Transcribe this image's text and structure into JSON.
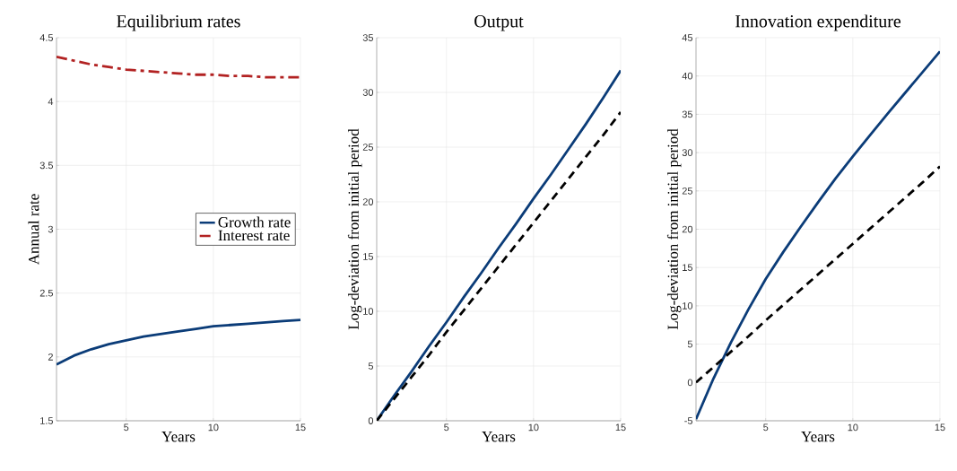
{
  "chart_data": [
    {
      "type": "line",
      "title": "Equilibrium rates",
      "xlabel": "Years",
      "ylabel": "Annual rate",
      "x": [
        1,
        2,
        3,
        4,
        5,
        6,
        7,
        8,
        9,
        10,
        11,
        12,
        13,
        14,
        15
      ],
      "xlim": [
        1,
        15
      ],
      "xticks": [
        5,
        10,
        15
      ],
      "ylim": [
        1.5,
        4.5
      ],
      "yticks": [
        1.5,
        2,
        2.5,
        3,
        3.5,
        4,
        4.5
      ],
      "grid": true,
      "legend": "right",
      "series": [
        {
          "name": "Growth rate",
          "color": "#0b3c78",
          "line_style": "solid",
          "values": [
            1.94,
            2.01,
            2.06,
            2.1,
            2.13,
            2.16,
            2.18,
            2.2,
            2.22,
            2.24,
            2.25,
            2.26,
            2.27,
            2.28,
            2.29
          ]
        },
        {
          "name": "Interest rate",
          "color": "#b22222",
          "line_style": "dashdot",
          "values": [
            4.35,
            4.32,
            4.29,
            4.27,
            4.25,
            4.24,
            4.23,
            4.22,
            4.21,
            4.21,
            4.2,
            4.2,
            4.19,
            4.19,
            4.19
          ]
        }
      ]
    },
    {
      "type": "line",
      "title": "Output",
      "xlabel": "Years",
      "ylabel": "Log-deviation from initial period",
      "x": [
        1,
        2,
        3,
        4,
        5,
        6,
        7,
        8,
        9,
        10,
        11,
        12,
        13,
        14,
        15
      ],
      "xlim": [
        1,
        15
      ],
      "xticks": [
        5,
        10,
        15
      ],
      "ylim": [
        0,
        35
      ],
      "yticks": [
        0,
        5,
        10,
        15,
        20,
        25,
        30,
        35
      ],
      "grid": true,
      "series": [
        {
          "color": "#0b3c78",
          "line_style": "solid",
          "values": [
            0,
            2.3,
            4.5,
            6.8,
            9.0,
            11.3,
            13.5,
            15.8,
            18.0,
            20.3,
            22.5,
            24.8,
            27.1,
            29.5,
            32.0
          ]
        },
        {
          "color": "#000000",
          "line_style": "dashed",
          "values": [
            0,
            2.0,
            4.0,
            6.0,
            8.1,
            10.1,
            12.1,
            14.1,
            16.1,
            18.1,
            20.1,
            22.1,
            24.1,
            26.1,
            28.2
          ]
        }
      ]
    },
    {
      "type": "line",
      "title": "Innovation expenditure",
      "xlabel": "Years",
      "ylabel": "Log-deviation from initial period",
      "x": [
        1,
        2,
        3,
        4,
        5,
        6,
        7,
        8,
        9,
        10,
        11,
        12,
        13,
        14,
        15
      ],
      "xlim": [
        1,
        15
      ],
      "xticks": [
        5,
        10,
        15
      ],
      "ylim": [
        -5,
        45
      ],
      "yticks": [
        -5,
        0,
        5,
        10,
        15,
        20,
        25,
        30,
        35,
        40,
        45
      ],
      "grid": true,
      "series": [
        {
          "color": "#0b3c78",
          "line_style": "solid",
          "values": [
            -4.8,
            0.5,
            5.2,
            9.5,
            13.5,
            17.0,
            20.3,
            23.5,
            26.6,
            29.5,
            32.3,
            35.1,
            37.8,
            40.5,
            43.2
          ]
        },
        {
          "color": "#000000",
          "line_style": "dashed",
          "values": [
            0,
            2.0,
            4.0,
            6.0,
            8.1,
            10.1,
            12.1,
            14.1,
            16.1,
            18.1,
            20.1,
            22.1,
            24.1,
            26.1,
            28.2
          ]
        }
      ]
    }
  ]
}
